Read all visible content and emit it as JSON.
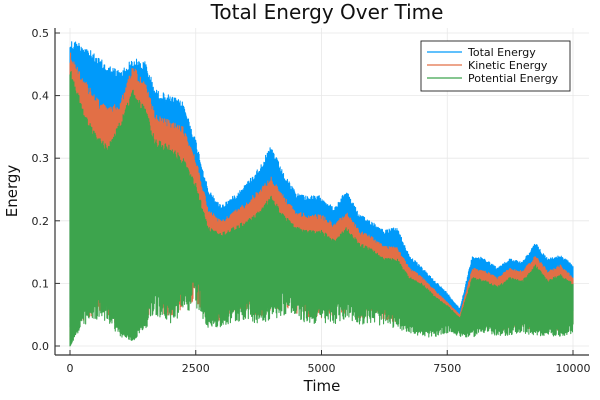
{
  "chart_data": {
    "type": "line",
    "title": "Total Energy Over Time",
    "xlabel": "Time",
    "ylabel": "Energy",
    "xlim": [
      -250,
      10250
    ],
    "ylim": [
      -0.015,
      0.5
    ],
    "xticks": [
      0,
      2500,
      5000,
      7500,
      10000
    ],
    "xtick_labels": [
      "0",
      "2500",
      "5000",
      "7500",
      "10000"
    ],
    "yticks": [
      0.0,
      0.1,
      0.2,
      0.3,
      0.4,
      0.5
    ],
    "ytick_labels": [
      "0.0",
      "0.1",
      "0.2",
      "0.3",
      "0.4",
      "0.5"
    ],
    "grid": true,
    "legend_position": "top-right",
    "series": [
      {
        "name": "Total Energy",
        "color": "#009AFA",
        "x": [
          0,
          250,
          500,
          750,
          1000,
          1250,
          1500,
          1700,
          2000,
          2250,
          2500,
          2750,
          3000,
          3250,
          3500,
          3750,
          4000,
          4250,
          4500,
          4750,
          5000,
          5250,
          5500,
          5750,
          6000,
          6250,
          6500,
          6750,
          7000,
          7250,
          7500,
          7750,
          8000,
          8250,
          8500,
          8750,
          9000,
          9250,
          9500,
          9750,
          10000
        ],
        "upper": [
          0.49,
          0.485,
          0.465,
          0.45,
          0.44,
          0.46,
          0.455,
          0.41,
          0.4,
          0.39,
          0.33,
          0.25,
          0.225,
          0.24,
          0.26,
          0.285,
          0.32,
          0.275,
          0.245,
          0.24,
          0.24,
          0.22,
          0.25,
          0.21,
          0.2,
          0.185,
          0.19,
          0.145,
          0.125,
          0.105,
          0.085,
          0.06,
          0.145,
          0.14,
          0.125,
          0.14,
          0.135,
          0.165,
          0.14,
          0.145,
          0.13
        ]
      },
      {
        "name": "Kinetic Energy",
        "color": "#E26F46",
        "x": [
          0,
          250,
          500,
          750,
          1000,
          1250,
          1500,
          1700,
          2000,
          2250,
          2500,
          2750,
          3000,
          3250,
          3500,
          3750,
          4000,
          4250,
          4500,
          4750,
          5000,
          5250,
          5500,
          5750,
          6000,
          6250,
          6500,
          6750,
          7000,
          7250,
          7500,
          7750,
          8000,
          8250,
          8500,
          8750,
          9000,
          9250,
          9500,
          9750,
          10000
        ],
        "upper": [
          0.47,
          0.43,
          0.4,
          0.38,
          0.39,
          0.45,
          0.42,
          0.37,
          0.36,
          0.35,
          0.3,
          0.22,
          0.2,
          0.215,
          0.23,
          0.25,
          0.27,
          0.24,
          0.215,
          0.21,
          0.21,
          0.195,
          0.215,
          0.185,
          0.175,
          0.16,
          0.16,
          0.125,
          0.11,
          0.09,
          0.07,
          0.05,
          0.125,
          0.12,
          0.11,
          0.125,
          0.12,
          0.145,
          0.12,
          0.13,
          0.11
        ]
      },
      {
        "name": "Potential Energy",
        "color": "#3DA44D",
        "x": [
          0,
          250,
          500,
          750,
          1000,
          1250,
          1500,
          1700,
          2000,
          2250,
          2500,
          2750,
          3000,
          3250,
          3500,
          3750,
          4000,
          4250,
          4500,
          4750,
          5000,
          5250,
          5500,
          5750,
          6000,
          6250,
          6500,
          6750,
          7000,
          7250,
          7500,
          7750,
          8000,
          8250,
          8500,
          8750,
          9000,
          9250,
          9500,
          9750,
          10000
        ],
        "upper": [
          0.45,
          0.38,
          0.34,
          0.32,
          0.36,
          0.41,
          0.38,
          0.33,
          0.32,
          0.3,
          0.26,
          0.19,
          0.18,
          0.19,
          0.2,
          0.215,
          0.24,
          0.21,
          0.19,
          0.185,
          0.185,
          0.17,
          0.19,
          0.165,
          0.155,
          0.14,
          0.14,
          0.11,
          0.1,
          0.08,
          0.065,
          0.045,
          0.11,
          0.105,
          0.095,
          0.11,
          0.105,
          0.13,
          0.105,
          0.115,
          0.1
        ],
        "lower": [
          0.0,
          0.04,
          0.06,
          0.055,
          0.02,
          0.01,
          0.04,
          0.07,
          0.05,
          0.07,
          0.09,
          0.04,
          0.04,
          0.05,
          0.06,
          0.05,
          0.06,
          0.07,
          0.06,
          0.05,
          0.05,
          0.05,
          0.06,
          0.05,
          0.05,
          0.045,
          0.04,
          0.03,
          0.02,
          0.02,
          0.03,
          0.02,
          0.02,
          0.03,
          0.02,
          0.025,
          0.03,
          0.02,
          0.025,
          0.02,
          0.03
        ]
      }
    ]
  }
}
